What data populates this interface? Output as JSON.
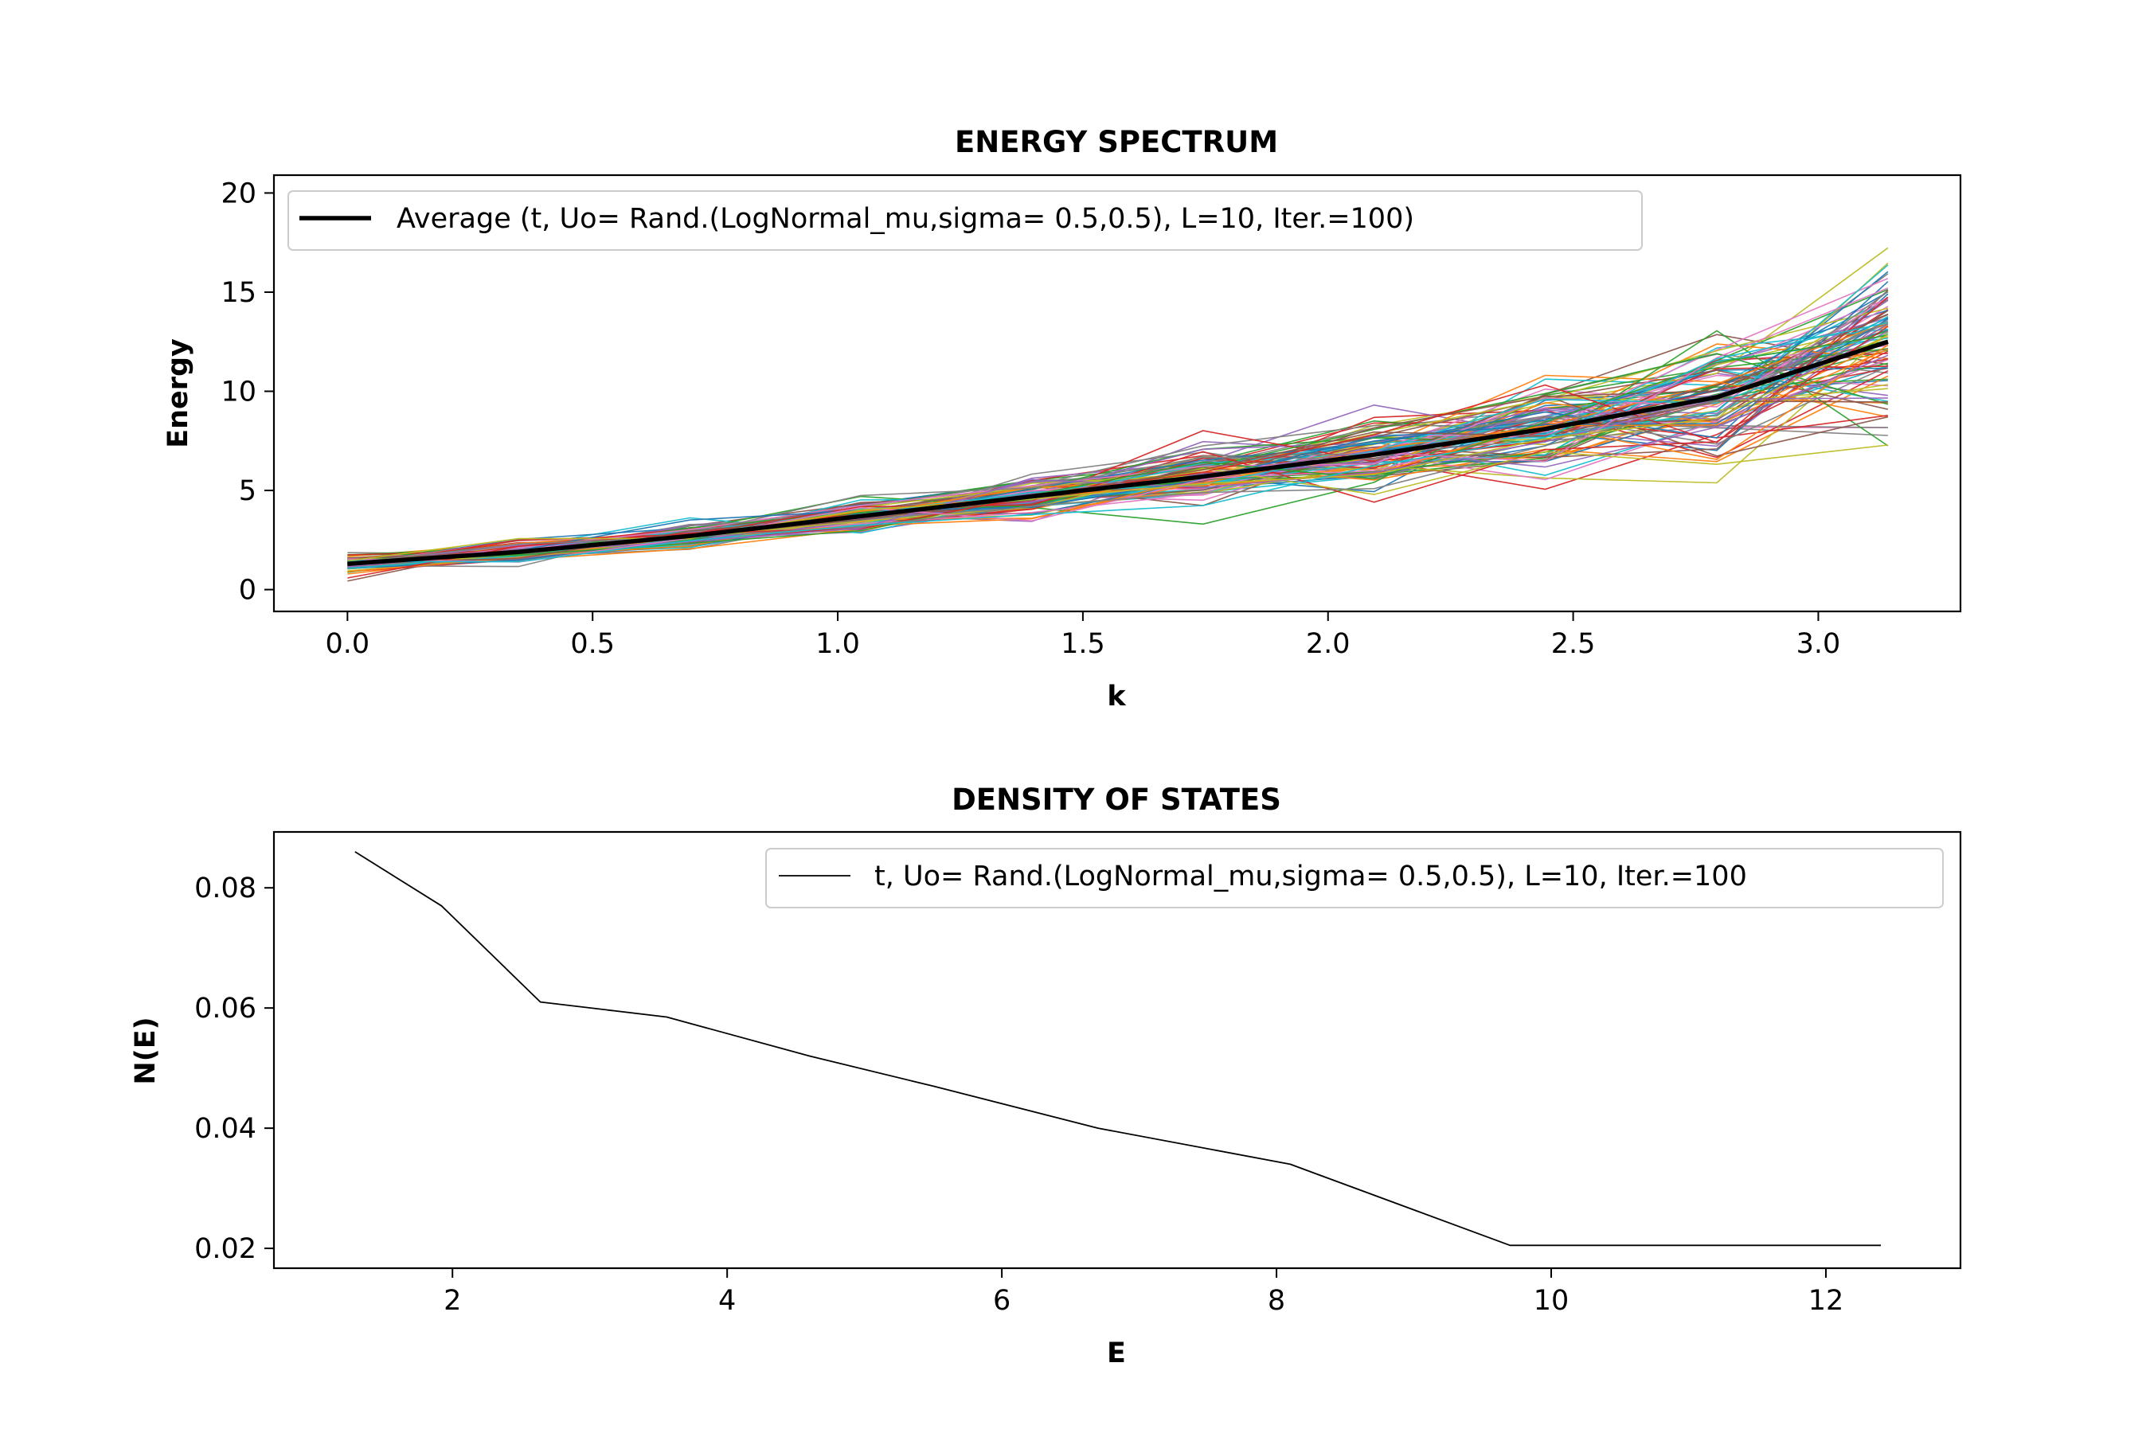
{
  "chart_data": [
    {
      "type": "line",
      "title": "ENERGY SPECTRUM",
      "xlabel": "k",
      "ylabel": "Energy",
      "xlim": [
        -0.15,
        3.29
      ],
      "ylim": [
        -1.1,
        20.9
      ],
      "xticks": [
        "0.0",
        "0.5",
        "1.0",
        "1.5",
        "2.0",
        "2.5",
        "3.0"
      ],
      "xtick_values": [
        0.0,
        0.5,
        1.0,
        1.5,
        2.0,
        2.5,
        3.0
      ],
      "yticks": [
        "0",
        "5",
        "10",
        "15",
        "20"
      ],
      "ytick_values": [
        0,
        5,
        10,
        15,
        20
      ],
      "grid": false,
      "legend_position": "top-left",
      "x": [
        0.0,
        0.349,
        0.698,
        1.047,
        1.396,
        1.745,
        2.094,
        2.443,
        2.793,
        3.142
      ],
      "series": [
        {
          "name": "Average (t, Uo= Rand.(LogNormal_mu,sigma= 0.5,0.5), L=10, Iter.=100)",
          "values": [
            1.3,
            1.9,
            2.7,
            3.7,
            4.7,
            5.7,
            6.8,
            8.1,
            9.7,
            12.5
          ],
          "color": "#000000",
          "width": 5.5
        }
      ],
      "realization_count": 100,
      "realization_colors": [
        "#1f77b4",
        "#ff7f0e",
        "#2ca02c",
        "#d62728",
        "#9467bd",
        "#8c564b",
        "#e377c2",
        "#7f7f7f",
        "#bcbd22",
        "#17becf"
      ]
    },
    {
      "type": "line",
      "title": "DENSITY OF STATES",
      "xlabel": "E",
      "ylabel": "N(E)",
      "xlim": [
        0.7,
        12.98
      ],
      "ylim": [
        0.0167,
        0.0893
      ],
      "xticks": [
        "2",
        "4",
        "6",
        "8",
        "10",
        "12"
      ],
      "xtick_values": [
        2,
        4,
        6,
        8,
        10,
        12
      ],
      "yticks": [
        "0.02",
        "0.04",
        "0.06",
        "0.08"
      ],
      "ytick_values": [
        0.02,
        0.04,
        0.06,
        0.08
      ],
      "grid": false,
      "legend_position": "top-right",
      "series": [
        {
          "name": "t, Uo= Rand.(LogNormal_mu,sigma= 0.5,0.5), L=10, Iter.=100",
          "x": [
            1.29,
            1.92,
            2.64,
            3.56,
            4.6,
            5.5,
            6.7,
            8.1,
            9.7,
            12.4
          ],
          "values": [
            0.086,
            0.077,
            0.061,
            0.0585,
            0.052,
            0.047,
            0.04,
            0.034,
            0.0205,
            0.0205
          ],
          "color": "#000000",
          "width": 1.8
        }
      ]
    }
  ]
}
